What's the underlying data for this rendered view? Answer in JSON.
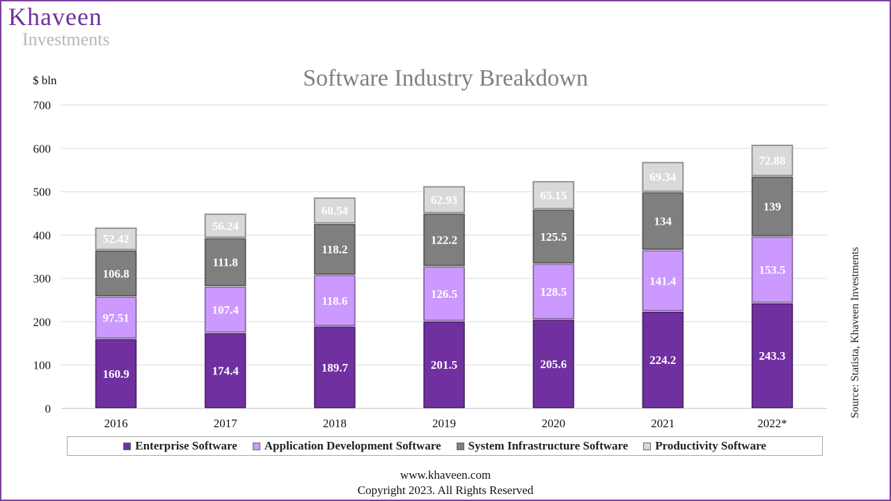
{
  "brand": {
    "name": "Khaveen",
    "subtitle": "Investments"
  },
  "footer": {
    "website": "www.khaveen.com",
    "copyright": "Copyright 2023. All Rights Reserved"
  },
  "source_note": "Source: Statista, Khaveen Investments",
  "colors": {
    "enterprise": "#7030a0",
    "app_dev": "#cc99ff",
    "system_infra": "#7f7f7f",
    "productivity": "#d9d9d9",
    "title": "#7f7f7f",
    "brand": "#7030a0"
  },
  "chart_data": {
    "type": "bar",
    "stacked": true,
    "title": "Software Industry Breakdown",
    "ylabel": "$ bln",
    "xlabel": "",
    "ylim": [
      0,
      700
    ],
    "yticks": [
      0,
      100,
      200,
      300,
      400,
      500,
      600,
      700
    ],
    "grid": true,
    "legend_position": "bottom",
    "categories": [
      "2016",
      "2017",
      "2018",
      "2019",
      "2020",
      "2021",
      "2022*"
    ],
    "series": [
      {
        "name": "Enterprise Software",
        "color_key": "enterprise",
        "values": [
          160.9,
          174.4,
          189.7,
          201.5,
          205.6,
          224.2,
          243.3
        ],
        "labels": [
          "160.9",
          "174.4",
          "189.7",
          "201.5",
          "205.6",
          "224.2",
          "243.3"
        ]
      },
      {
        "name": "Application Development Software",
        "color_key": "app_dev",
        "values": [
          97.51,
          107.4,
          118.6,
          126.5,
          128.5,
          141.4,
          153.5
        ],
        "labels": [
          "97.51",
          "107.4",
          "118.6",
          "126.5",
          "128.5",
          "141.4",
          "153.5"
        ]
      },
      {
        "name": "System Infrastructure Software",
        "color_key": "system_infra",
        "values": [
          106.8,
          111.8,
          118.2,
          122.2,
          125.5,
          134,
          139
        ],
        "labels": [
          "106.8",
          "111.8",
          "118.2",
          "122.2",
          "125.5",
          "134",
          "139"
        ]
      },
      {
        "name": "Productivity Software",
        "color_key": "productivity",
        "values": [
          52.42,
          56.24,
          60.54,
          62.93,
          65.15,
          69.34,
          72.88
        ],
        "labels": [
          "52.42",
          "56.24",
          "60.54",
          "62.93",
          "65.15",
          "69.34",
          "72.88"
        ]
      }
    ]
  }
}
